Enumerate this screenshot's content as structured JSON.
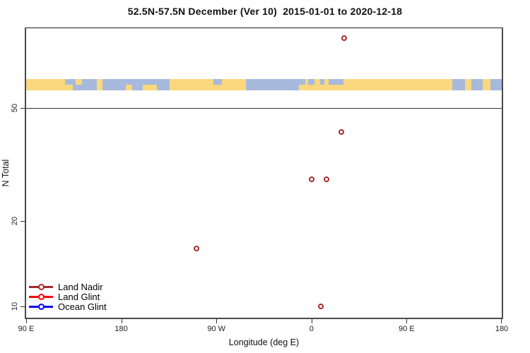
{
  "page": {
    "background": "#FFFFFF"
  },
  "chart_data": {
    "type": "scatter",
    "title": "52.5N-57.5N December (Ver 10)  2015-01-01 to 2020-12-18",
    "xlabel": "Longitude (deg E)",
    "ylabel": "N Total",
    "xlim": [
      -270,
      180
    ],
    "ylim": [
      9,
      96
    ],
    "yscale": "log",
    "grid": "off",
    "xticks": [
      {
        "lon": -270,
        "label": "90 E"
      },
      {
        "lon": -180,
        "label": "180"
      },
      {
        "lon": -90,
        "label": "90 W"
      },
      {
        "lon": 0,
        "label": "0"
      },
      {
        "lon": 90,
        "label": "90 E"
      },
      {
        "lon": 180,
        "label": "180"
      }
    ],
    "yticks": [
      {
        "value": 10,
        "label": "10"
      },
      {
        "value": 20,
        "label": "20"
      },
      {
        "value": 50,
        "label": "50"
      }
    ],
    "hline_value": 50,
    "hline_color": "#333333",
    "series": [
      {
        "name": "Land Nadir",
        "color": "#A52A2A",
        "marker": "open-circle",
        "points": [
          {
            "lon": 31,
            "n": 88
          },
          {
            "lon": 28,
            "n": 41
          },
          {
            "lon": 0,
            "n": 28
          },
          {
            "lon": 14,
            "n": 28
          },
          {
            "lon": -109,
            "n": 16
          },
          {
            "lon": 9,
            "n": 10
          }
        ]
      },
      {
        "name": "Land Glint",
        "color": "#FF0000",
        "marker": "open-circle",
        "points": []
      },
      {
        "name": "Ocean Glint",
        "color": "#0000FF",
        "marker": "open-circle",
        "points": []
      }
    ],
    "legend": {
      "position": "bottom-left",
      "entries": [
        {
          "label": "Land Nadir",
          "color": "#A52A2A"
        },
        {
          "label": "Land Glint",
          "color": "#FF0000"
        },
        {
          "label": "Ocean Glint",
          "color": "#0000FF"
        }
      ]
    },
    "map_band": {
      "description": "land/ocean strip for 52.5N-57.5N",
      "n_range": [
        57.5,
        63
      ],
      "land_color": "#FBD87D",
      "ocean_color": "#A7B9DC",
      "segments": [
        {
          "start": -270,
          "end": -226,
          "type": "land"
        },
        {
          "start": -226,
          "end": -203,
          "type": "ocean"
        },
        {
          "start": -203,
          "end": -198,
          "type": "land"
        },
        {
          "start": -198,
          "end": -134,
          "type": "ocean"
        },
        {
          "start": -134,
          "end": -62,
          "type": "land"
        },
        {
          "start": -62,
          "end": -6,
          "type": "ocean"
        },
        {
          "start": -6,
          "end": 133,
          "type": "land"
        },
        {
          "start": 133,
          "end": 145,
          "type": "ocean"
        },
        {
          "start": 145,
          "end": 151,
          "type": "land"
        },
        {
          "start": 151,
          "end": 162,
          "type": "ocean"
        },
        {
          "start": 162,
          "end": 169,
          "type": "land"
        },
        {
          "start": 169,
          "end": 180,
          "type": "ocean"
        }
      ],
      "overlays": [
        {
          "start": -233,
          "end": -226,
          "type": "ocean",
          "half": "top"
        },
        {
          "start": -223,
          "end": -217,
          "type": "land",
          "half": "top"
        },
        {
          "start": -176,
          "end": -170,
          "type": "land",
          "half": "bottom"
        },
        {
          "start": -160,
          "end": -146,
          "type": "land",
          "half": "bottom"
        },
        {
          "start": -140,
          "end": -134,
          "type": "ocean",
          "half": "top"
        },
        {
          "start": -93,
          "end": -85,
          "type": "ocean",
          "half": "top"
        },
        {
          "start": -12,
          "end": -6,
          "type": "land",
          "half": "bottom"
        },
        {
          "start": -3,
          "end": 3,
          "type": "ocean",
          "half": "top"
        },
        {
          "start": 8,
          "end": 12,
          "type": "ocean",
          "half": "top"
        },
        {
          "start": 16,
          "end": 30,
          "type": "ocean",
          "half": "top"
        }
      ]
    }
  }
}
